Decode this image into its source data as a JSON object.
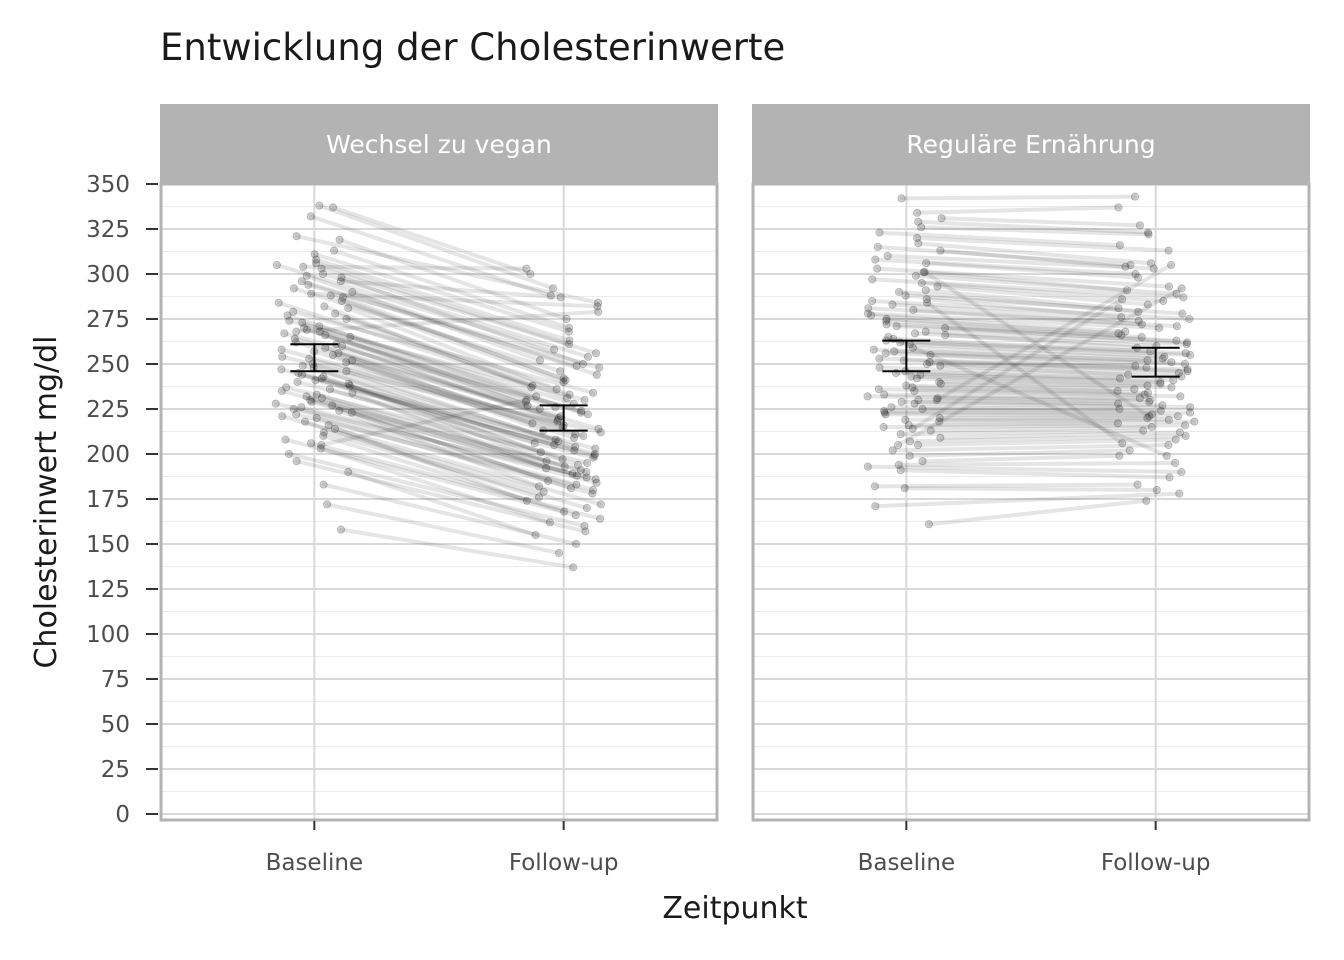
{
  "chart_data": {
    "type": "line",
    "title": "Entwicklung der Cholesterinwerte",
    "xlabel": "Zeitpunkt",
    "ylabel": "Cholesterinwert mg/dl",
    "ylim": [
      0,
      350
    ],
    "yticks": [
      0,
      25,
      50,
      75,
      100,
      125,
      150,
      175,
      200,
      225,
      250,
      275,
      300,
      325,
      350
    ],
    "categories": [
      "Baseline",
      "Follow-up"
    ],
    "grid": true,
    "colors": {
      "strip_bg": "#b3b3b3",
      "panel_border": "#b3b3b3",
      "grid_major": "#d9d9d9",
      "grid_minor": "#ececec",
      "points": "#000000",
      "errorbar": "#000000"
    },
    "panels": [
      {
        "label": "Wechsel zu vegan",
        "summary": {
          "Baseline": {
            "lower": 246,
            "upper": 261
          },
          "Follow-up": {
            "lower": 213,
            "upper": 227
          }
        },
        "pairs": [
          [
            337,
            300
          ],
          [
            338,
            292
          ],
          [
            332,
            288
          ],
          [
            321,
            284
          ],
          [
            319,
            275
          ],
          [
            313,
            270
          ],
          [
            311,
            268
          ],
          [
            308,
            263
          ],
          [
            306,
            261
          ],
          [
            305,
            258
          ],
          [
            303,
            256
          ],
          [
            300,
            254
          ],
          [
            299,
            252
          ],
          [
            298,
            250
          ],
          [
            296,
            249
          ],
          [
            294,
            248
          ],
          [
            292,
            246
          ],
          [
            290,
            244
          ],
          [
            288,
            242
          ],
          [
            287,
            241
          ],
          [
            285,
            240
          ],
          [
            284,
            238
          ],
          [
            282,
            237
          ],
          [
            281,
            236
          ],
          [
            279,
            234
          ],
          [
            278,
            233
          ],
          [
            277,
            232
          ],
          [
            275,
            231
          ],
          [
            274,
            230
          ],
          [
            273,
            229
          ],
          [
            271,
            228
          ],
          [
            270,
            227
          ],
          [
            269,
            226
          ],
          [
            268,
            225
          ],
          [
            267,
            224
          ],
          [
            266,
            223
          ],
          [
            265,
            222
          ],
          [
            264,
            221
          ],
          [
            262,
            220
          ],
          [
            261,
            219
          ],
          [
            260,
            218
          ],
          [
            259,
            217
          ],
          [
            258,
            216
          ],
          [
            257,
            215
          ],
          [
            256,
            214
          ],
          [
            255,
            213
          ],
          [
            254,
            212
          ],
          [
            253,
            211
          ],
          [
            252,
            210
          ],
          [
            251,
            209
          ],
          [
            250,
            208
          ],
          [
            249,
            207
          ],
          [
            248,
            206
          ],
          [
            247,
            205
          ],
          [
            246,
            204
          ],
          [
            245,
            203
          ],
          [
            244,
            202
          ],
          [
            243,
            201
          ],
          [
            242,
            200
          ],
          [
            241,
            199
          ],
          [
            240,
            198
          ],
          [
            239,
            197
          ],
          [
            238,
            196
          ],
          [
            237,
            195
          ],
          [
            236,
            194
          ],
          [
            235,
            193
          ],
          [
            234,
            192
          ],
          [
            233,
            191
          ],
          [
            232,
            190
          ],
          [
            231,
            189
          ],
          [
            230,
            188
          ],
          [
            229,
            187
          ],
          [
            228,
            186
          ],
          [
            227,
            185
          ],
          [
            226,
            184
          ],
          [
            225,
            183
          ],
          [
            224,
            182
          ],
          [
            223,
            181
          ],
          [
            222,
            180
          ],
          [
            221,
            179
          ],
          [
            220,
            178
          ],
          [
            218,
            176
          ],
          [
            216,
            174
          ],
          [
            214,
            172
          ],
          [
            212,
            170
          ],
          [
            210,
            168
          ],
          [
            208,
            166
          ],
          [
            206,
            164
          ],
          [
            203,
            162
          ],
          [
            200,
            160
          ],
          [
            196,
            157
          ],
          [
            190,
            155
          ],
          [
            183,
            150
          ],
          [
            172,
            145
          ],
          [
            158,
            137
          ],
          [
            304,
            303
          ],
          [
            296,
            287
          ],
          [
            289,
            282
          ],
          [
            268,
            279
          ],
          [
            205,
            230
          ]
        ]
      },
      {
        "label": "Reguläre Ernährung",
        "summary": {
          "Baseline": {
            "lower": 246,
            "upper": 263
          },
          "Follow-up": {
            "lower": 243,
            "upper": 259
          }
        },
        "pairs": [
          [
            342,
            343
          ],
          [
            334,
            337
          ],
          [
            331,
            327
          ],
          [
            329,
            323
          ],
          [
            326,
            322
          ],
          [
            323,
            316
          ],
          [
            320,
            313
          ],
          [
            317,
            306
          ],
          [
            315,
            305
          ],
          [
            313,
            304
          ],
          [
            310,
            303
          ],
          [
            308,
            300
          ],
          [
            306,
            298
          ],
          [
            303,
            293
          ],
          [
            301,
            291
          ],
          [
            299,
            289
          ],
          [
            297,
            287
          ],
          [
            295,
            285
          ],
          [
            293,
            283
          ],
          [
            291,
            281
          ],
          [
            290,
            279
          ],
          [
            288,
            278
          ],
          [
            286,
            276
          ],
          [
            285,
            275
          ],
          [
            283,
            274
          ],
          [
            281,
            272
          ],
          [
            280,
            271
          ],
          [
            278,
            270
          ],
          [
            277,
            268
          ],
          [
            275,
            267
          ],
          [
            274,
            266
          ],
          [
            272,
            265
          ],
          [
            271,
            263
          ],
          [
            270,
            262
          ],
          [
            268,
            261
          ],
          [
            267,
            260
          ],
          [
            266,
            259
          ],
          [
            264,
            257
          ],
          [
            263,
            256
          ],
          [
            262,
            255
          ],
          [
            261,
            254
          ],
          [
            259,
            253
          ],
          [
            258,
            252
          ],
          [
            257,
            251
          ],
          [
            256,
            250
          ],
          [
            255,
            249
          ],
          [
            253,
            248
          ],
          [
            252,
            247
          ],
          [
            251,
            246
          ],
          [
            250,
            245
          ],
          [
            249,
            244
          ],
          [
            248,
            243
          ],
          [
            246,
            242
          ],
          [
            245,
            241
          ],
          [
            244,
            240
          ],
          [
            243,
            239
          ],
          [
            242,
            238
          ],
          [
            240,
            237
          ],
          [
            239,
            236
          ],
          [
            238,
            235
          ],
          [
            237,
            234
          ],
          [
            236,
            233
          ],
          [
            235,
            232
          ],
          [
            233,
            231
          ],
          [
            232,
            230
          ],
          [
            231,
            229
          ],
          [
            230,
            228
          ],
          [
            229,
            227
          ],
          [
            228,
            226
          ],
          [
            226,
            225
          ],
          [
            225,
            224
          ],
          [
            224,
            223
          ],
          [
            223,
            222
          ],
          [
            222,
            221
          ],
          [
            220,
            220
          ],
          [
            219,
            219
          ],
          [
            218,
            218
          ],
          [
            216,
            217
          ],
          [
            215,
            216
          ],
          [
            213,
            215
          ],
          [
            211,
            213
          ],
          [
            209,
            212
          ],
          [
            207,
            210
          ],
          [
            205,
            208
          ],
          [
            202,
            205
          ],
          [
            199,
            202
          ],
          [
            196,
            199
          ],
          [
            194,
            195
          ],
          [
            193,
            190
          ],
          [
            191,
            187
          ],
          [
            182,
            183
          ],
          [
            181,
            180
          ],
          [
            171,
            178
          ],
          [
            161,
            174
          ],
          [
            301,
            221
          ],
          [
            230,
            305
          ],
          [
            265,
            199
          ],
          [
            205,
            292
          ],
          [
            284,
            206
          ],
          [
            214,
            286
          ]
        ]
      }
    ]
  }
}
